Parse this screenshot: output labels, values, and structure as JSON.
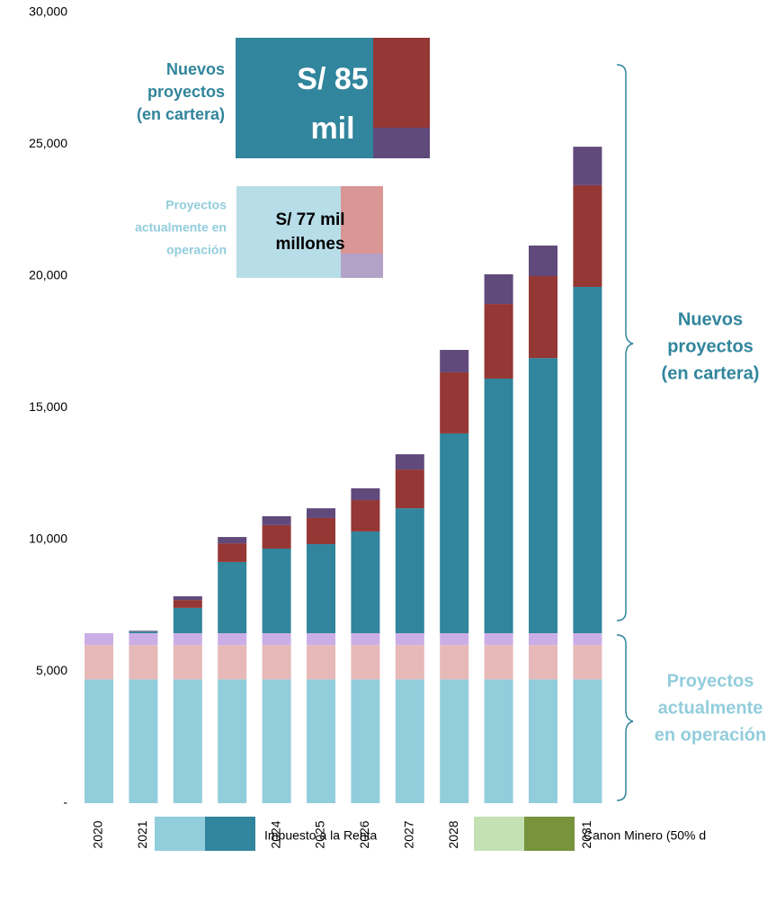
{
  "chart_data": {
    "type": "stacked_bar",
    "categories": [
      "2020",
      "2021",
      "2022",
      "2023",
      "2024",
      "2025",
      "2026",
      "2027",
      "2028",
      "2029",
      "2030",
      "2031"
    ],
    "series": [
      {
        "color": "#92cddc",
        "values": [
          4700,
          4700,
          4700,
          4700,
          4700,
          4700,
          4700,
          4700,
          4700,
          4700,
          4700,
          4700
        ]
      },
      {
        "color": "#e6b9b8",
        "values": [
          1300,
          1300,
          1300,
          1300,
          1300,
          1300,
          1300,
          1300,
          1300,
          1300,
          1300,
          1300
        ]
      },
      {
        "color": "#ccaee6",
        "values": [
          450,
          450,
          450,
          450,
          450,
          450,
          450,
          450,
          450,
          450,
          450,
          450
        ]
      },
      {
        "color": "#31859c",
        "values": [
          0,
          60,
          960,
          2700,
          3210,
          3380,
          3860,
          4740,
          7580,
          9660,
          10440,
          13140
        ]
      },
      {
        "color": "#953735",
        "values": [
          0,
          0,
          300,
          710,
          890,
          990,
          1190,
          1470,
          2320,
          2830,
          3110,
          3860
        ]
      },
      {
        "color": "#604a7b",
        "values": [
          0,
          30,
          140,
          240,
          340,
          370,
          450,
          580,
          850,
          1130,
          1160,
          1460
        ]
      }
    ],
    "ylim": [
      0,
      30000
    ],
    "yticks": [
      {
        "value": 0,
        "label": "-"
      },
      {
        "value": 5000,
        "label": "5,000"
      },
      {
        "value": 10000,
        "label": "10,000"
      },
      {
        "value": 15000,
        "label": "15,000"
      },
      {
        "value": 20000,
        "label": "20,000"
      },
      {
        "value": 25000,
        "label": "25,000"
      },
      {
        "value": 30000,
        "label": "30,000"
      }
    ],
    "legend": [
      {
        "label": "Impuesto a la Renta",
        "colors": [
          "#92cddc",
          "#31859c"
        ]
      },
      {
        "label": "Canon Minero (50% d",
        "colors": [
          "#c4e1b4",
          "#77933c"
        ]
      }
    ],
    "annotations": {
      "new_box_label": [
        "Nuevos",
        "proyectos",
        "(en cartera)"
      ],
      "new_box_value": [
        "S/ 85",
        "mil"
      ],
      "old_box_label": [
        "Proyectos",
        "actualmente en",
        "operación"
      ],
      "old_box_value": [
        "S/ 77 mil",
        "millones"
      ],
      "new_bracket": [
        "Nuevos",
        "proyectos",
        "(en cartera)"
      ],
      "old_bracket": [
        "Proyectos",
        "actualmente",
        "en operación"
      ]
    }
  }
}
